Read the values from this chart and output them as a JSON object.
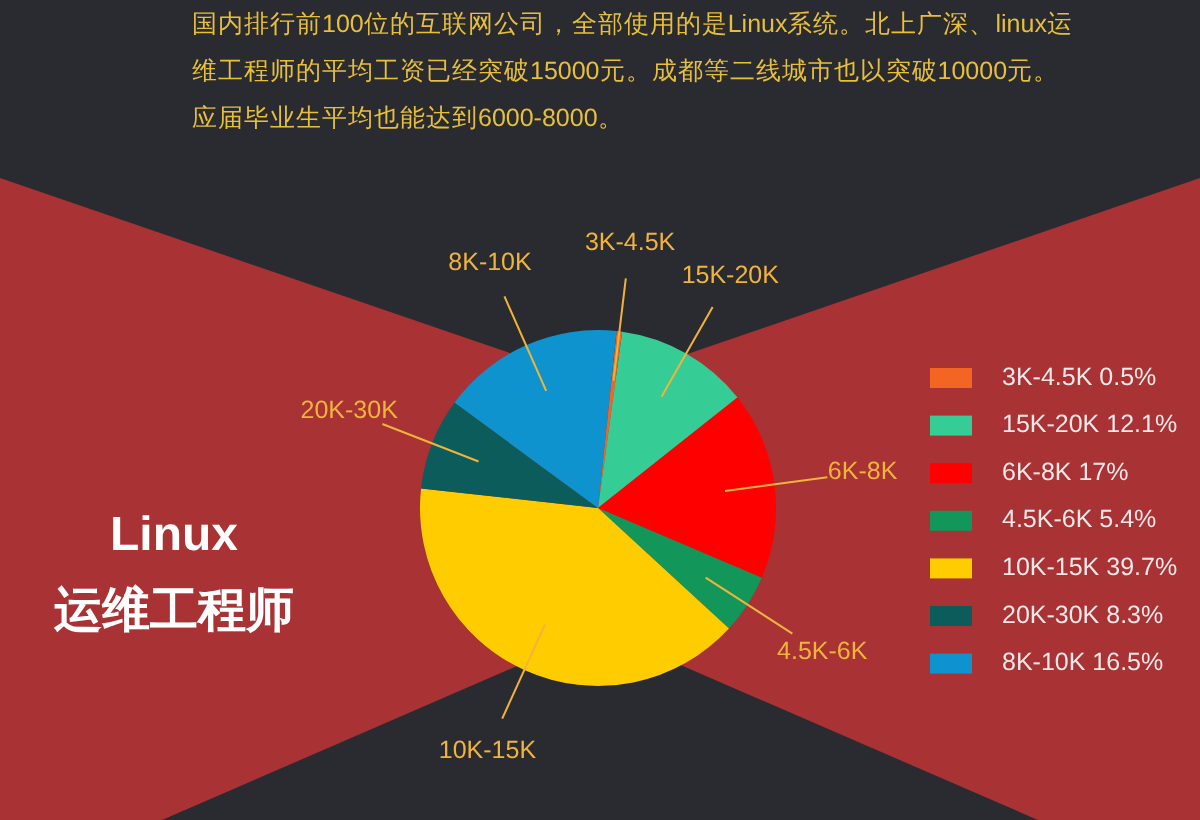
{
  "chart_data": {
    "type": "pie",
    "title": "Linux 运维工程师",
    "annotations": [
      "国内排行前100位的互联网公司，全部使用的是Linux系统。北上广深、linux运维工程师的平均工资已经突破15000元。成都等二线城市也以突破10000元。应届毕业生平均也能达到6000-8000。"
    ],
    "categories": [
      "3K-4.5K",
      "15K-20K",
      "6K-8K",
      "4.5K-6K",
      "10K-15K",
      "20K-30K",
      "8K-10K"
    ],
    "values": [
      0.5,
      12.1,
      17,
      5.4,
      39.7,
      8.3,
      16.5
    ],
    "value_labels": [
      "0.5%",
      "12.1%",
      "17%",
      "5.4%",
      "39.7%",
      "8.3%",
      "16.5%"
    ],
    "colors": [
      "#f26522",
      "#35cc96",
      "#ff0000",
      "#12965a",
      "#ffcc00",
      "#0b5c5a",
      "#0e93cf"
    ],
    "legend": "right"
  }
}
